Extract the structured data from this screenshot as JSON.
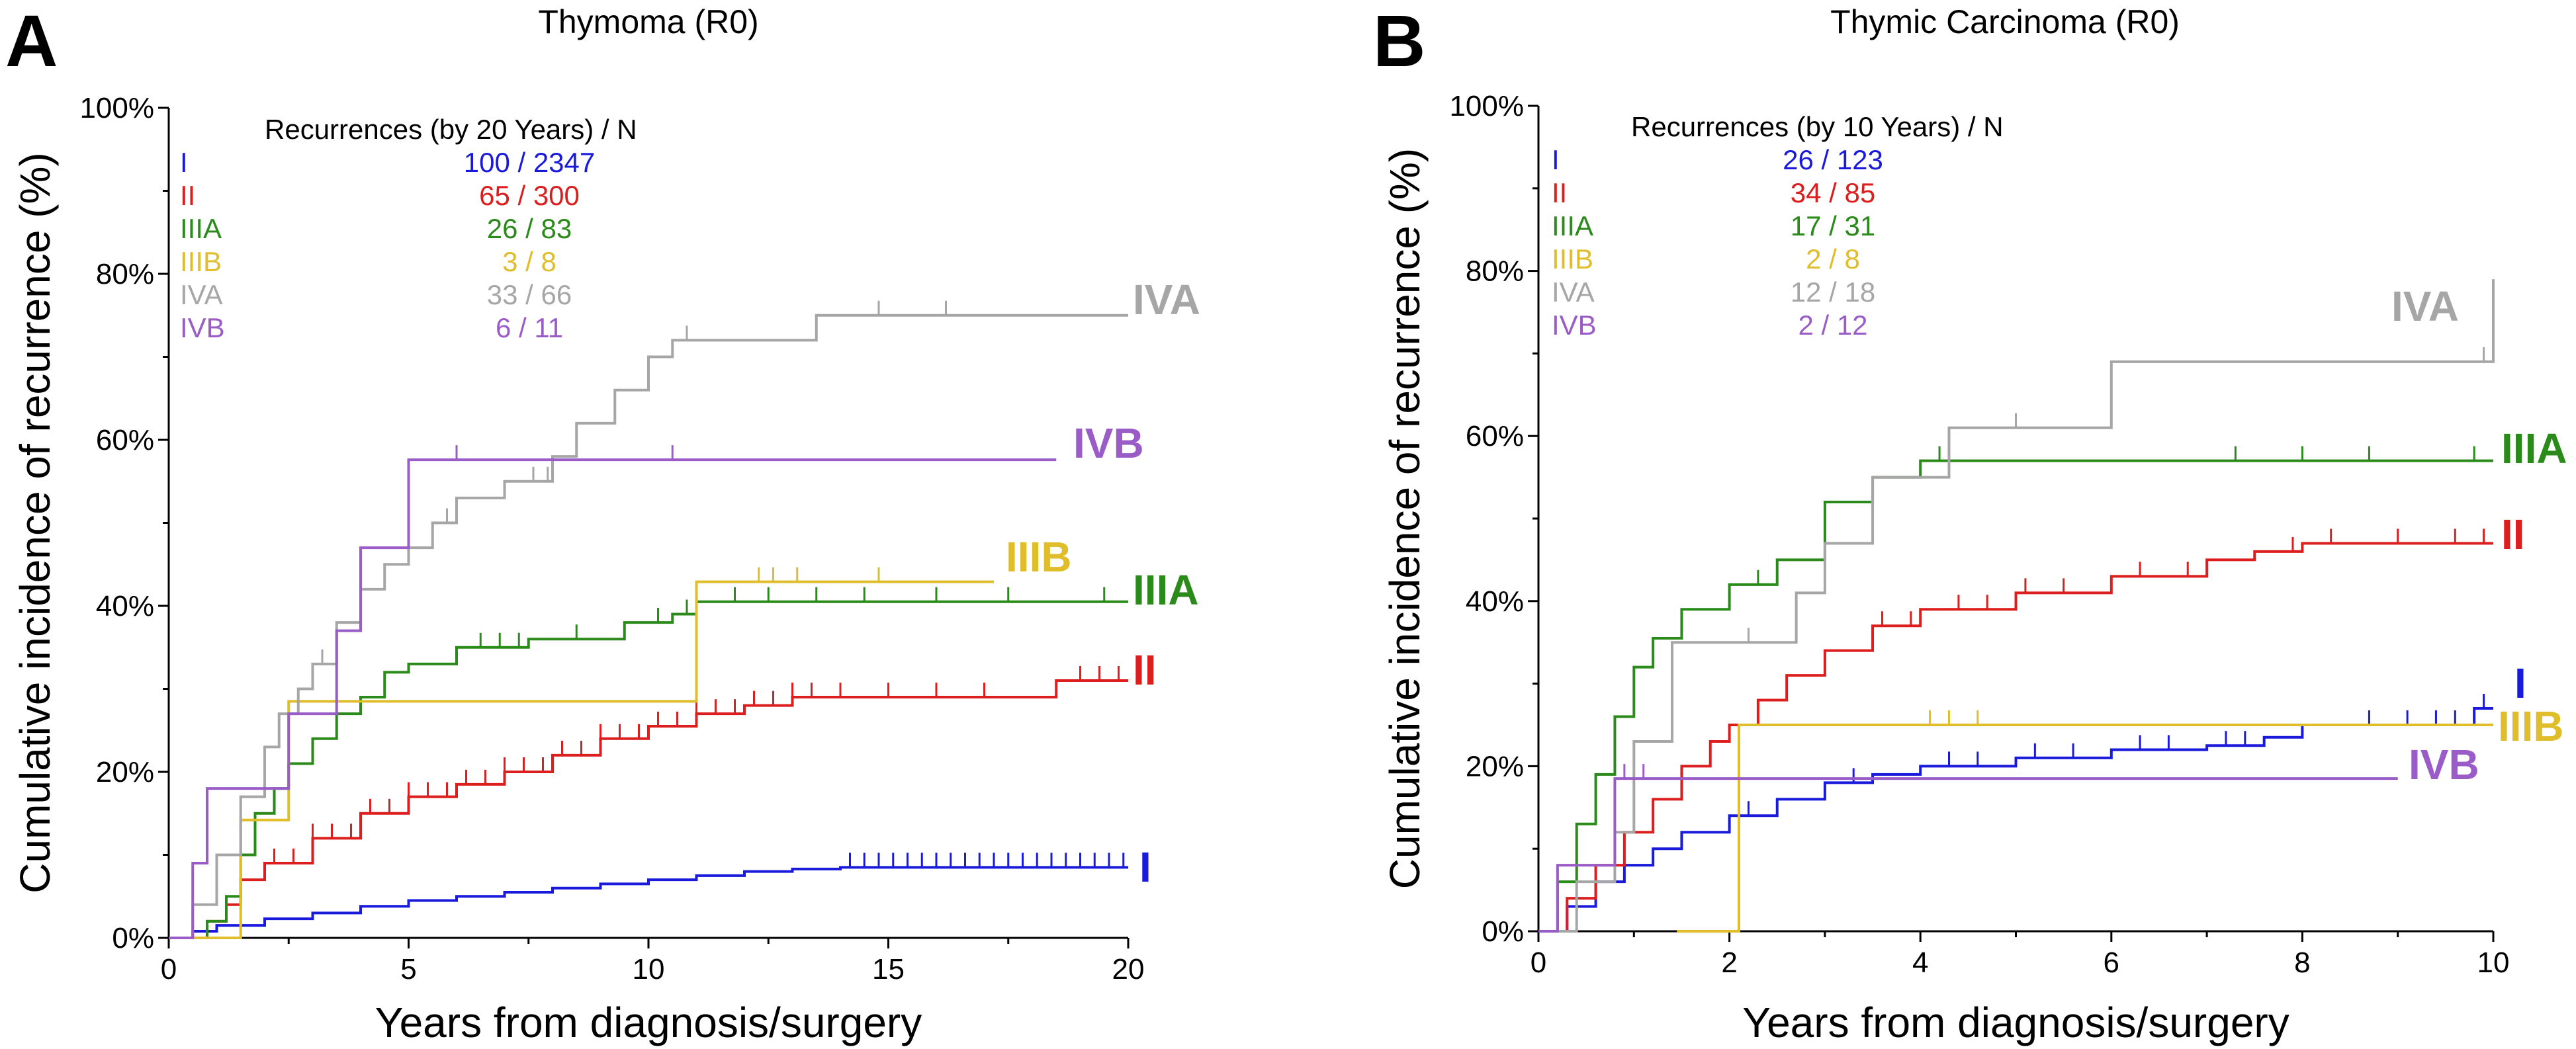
{
  "chart_data": [
    {
      "type": "line",
      "panel_letter": "A",
      "title": "Thymoma (R0)",
      "xlabel": "Years from diagnosis/surgery",
      "ylabel": "Cumulative incidence of recurrence (%)",
      "xlim": [
        0,
        20
      ],
      "ylim": [
        0,
        100
      ],
      "x_ticks": [
        0,
        5,
        10,
        15,
        20
      ],
      "y_ticks": [
        "0%",
        "20%",
        "40%",
        "60%",
        "80%",
        "100%"
      ],
      "y_tick_values": [
        0,
        20,
        40,
        60,
        80,
        100
      ],
      "legend_header": "Recurrences (by 20 Years) / N",
      "legend_position": "top-left",
      "series": [
        {
          "name": "I",
          "color": "#1a1adc",
          "ratio": "100 / 2347",
          "end_label": "I",
          "x": [
            0,
            0.5,
            1,
            2,
            3,
            4,
            5,
            6,
            7,
            8,
            9,
            10,
            11,
            12,
            13,
            14,
            20
          ],
          "y": [
            0,
            0.8,
            1.5,
            2.3,
            3.0,
            3.8,
            4.5,
            5.0,
            5.5,
            6.0,
            6.5,
            7.0,
            7.5,
            8.0,
            8.3,
            8.5,
            8.5
          ],
          "censor_x": [
            14.2,
            14.5,
            14.8,
            15.1,
            15.4,
            15.7,
            16.0,
            16.3,
            16.6,
            16.9,
            17.2,
            17.5,
            17.8,
            18.1,
            18.4,
            18.7,
            19.0,
            19.3,
            19.6,
            19.9
          ]
        },
        {
          "name": "II",
          "color": "#dc1e1e",
          "ratio": "65 / 300",
          "end_label": "II",
          "x": [
            0,
            0.8,
            1.2,
            1.5,
            2,
            3,
            4,
            5,
            6,
            7,
            8,
            9,
            10,
            11,
            12,
            13,
            15,
            18,
            18.5,
            20
          ],
          "y": [
            0,
            2,
            4,
            7,
            9,
            12,
            15,
            17,
            18.5,
            20,
            22,
            24,
            25.5,
            27,
            28,
            29,
            29,
            29,
            31,
            31
          ],
          "censor_x": [
            2.2,
            2.6,
            3.0,
            3.4,
            3.8,
            4.2,
            4.6,
            5.0,
            5.4,
            5.8,
            6.2,
            6.6,
            7.0,
            7.4,
            7.8,
            8.2,
            8.6,
            9.0,
            9.4,
            9.8,
            10.2,
            10.6,
            11.0,
            11.4,
            11.8,
            12.2,
            12.6,
            13.0,
            13.4,
            14.0,
            15.0,
            16.0,
            17.0,
            19.0,
            19.4,
            19.8
          ]
        },
        {
          "name": "IIIA",
          "color": "#2a8a1a",
          "ratio": "26 / 83",
          "end_label": "IIIA",
          "x": [
            0,
            0.8,
            1.2,
            1.5,
            1.8,
            2.2,
            2.5,
            3.0,
            3.5,
            4.0,
            4.5,
            5.0,
            6.0,
            7.5,
            9.5,
            10.5,
            11.0,
            20
          ],
          "y": [
            0,
            2,
            5,
            10,
            15,
            18,
            21,
            24,
            27,
            29,
            32,
            33,
            35,
            36,
            38,
            39,
            40.5,
            40.5
          ],
          "censor_x": [
            6.5,
            6.9,
            7.3,
            8.5,
            10.2,
            10.8,
            11.8,
            12.5,
            13.5,
            14.5,
            16.0,
            17.5,
            19.5
          ]
        },
        {
          "name": "IIIB",
          "color": "#e0bd2a",
          "ratio": "3 / 8",
          "end_label": "IIIB",
          "x": [
            0,
            1.5,
            2.5,
            11.0,
            17.2
          ],
          "y": [
            0,
            14.2,
            28.5,
            42.9,
            42.9
          ],
          "censor_x": [
            12.3,
            12.6,
            13.1,
            14.8
          ]
        },
        {
          "name": "IVA",
          "color": "#a6a6a6",
          "ratio": "33 / 66",
          "end_label": "IVA",
          "x": [
            0,
            0.5,
            1.0,
            1.5,
            2.0,
            2.3,
            2.7,
            3.0,
            3.5,
            4.0,
            4.5,
            5.0,
            5.5,
            6.0,
            7.0,
            8.0,
            8.5,
            9.3,
            10.0,
            10.5,
            13.5,
            20
          ],
          "y": [
            0,
            4,
            10,
            17,
            23,
            27,
            30,
            33,
            38,
            42,
            45,
            47,
            50,
            53,
            55,
            58,
            62,
            66,
            70,
            72,
            75,
            75
          ],
          "censor_x": [
            3.2,
            5.8,
            7.6,
            7.9,
            10.8,
            14.8,
            16.2
          ]
        },
        {
          "name": "IVB",
          "color": "#9a5cc6",
          "ratio": "6 / 11",
          "end_label": "IVB",
          "x": [
            0,
            0.5,
            0.8,
            2.5,
            3.5,
            4.0,
            5.0,
            18.5
          ],
          "y": [
            0,
            9,
            18,
            27,
            37,
            47,
            57.6,
            57.6
          ],
          "censor_x": [
            6.0,
            10.5
          ]
        }
      ]
    },
    {
      "type": "line",
      "panel_letter": "B",
      "title": "Thymic Carcinoma (R0)",
      "xlabel": "Years from diagnosis/surgery",
      "ylabel": "Cumulative incidence of recurrence (%)",
      "xlim": [
        0,
        10
      ],
      "ylim": [
        0,
        100
      ],
      "x_ticks": [
        0,
        2,
        4,
        6,
        8,
        10
      ],
      "y_ticks": [
        "0%",
        "20%",
        "40%",
        "60%",
        "80%",
        "100%"
      ],
      "y_tick_values": [
        0,
        20,
        40,
        60,
        80,
        100
      ],
      "legend_header": "Recurrences (by 10 Years) / N",
      "legend_position": "top-left",
      "series": [
        {
          "name": "I",
          "color": "#1a1adc",
          "ratio": "26 / 123",
          "end_label": "I",
          "x": [
            0,
            0.3,
            0.6,
            0.9,
            1.2,
            1.5,
            2.0,
            2.5,
            3.0,
            3.5,
            4.0,
            5.0,
            6.0,
            7.0,
            7.6,
            8.0,
            9.8,
            10
          ],
          "y": [
            0,
            3,
            6,
            8,
            10,
            12,
            14,
            16,
            18,
            19,
            20,
            21,
            22,
            22.5,
            23.5,
            25,
            27,
            27
          ],
          "censor_x": [
            2.2,
            3.3,
            4.3,
            4.6,
            5.2,
            5.6,
            6.3,
            6.6,
            7.2,
            7.4,
            8.7,
            9.1,
            9.4,
            9.6,
            9.9
          ]
        },
        {
          "name": "II",
          "color": "#dc1e1e",
          "ratio": "34 / 85",
          "end_label": "II",
          "x": [
            0,
            0.3,
            0.6,
            0.9,
            1.2,
            1.5,
            1.8,
            2.0,
            2.3,
            2.6,
            3.0,
            3.5,
            4.0,
            5.0,
            6.0,
            7.0,
            7.5,
            8.0,
            10
          ],
          "y": [
            0,
            4,
            8,
            12,
            16,
            20,
            23,
            25,
            28,
            31,
            34,
            37,
            39,
            41,
            43,
            45,
            46,
            47,
            47
          ],
          "censor_x": [
            3.6,
            3.9,
            4.4,
            4.7,
            5.1,
            5.5,
            6.3,
            6.8,
            7.9,
            8.3,
            9.0,
            9.6,
            9.9
          ]
        },
        {
          "name": "IIIA",
          "color": "#2a8a1a",
          "ratio": "17 / 31",
          "end_label": "IIIA",
          "x": [
            0,
            0.2,
            0.4,
            0.6,
            0.8,
            1.0,
            1.2,
            1.5,
            2.0,
            2.5,
            3.0,
            3.5,
            4.0,
            10
          ],
          "y": [
            0,
            6,
            13,
            19,
            26,
            32,
            35.5,
            39,
            42,
            45,
            52,
            55,
            57,
            57
          ],
          "censor_x": [
            2.3,
            4.2,
            7.3,
            8.0,
            8.7,
            9.8
          ]
        },
        {
          "name": "IIIB",
          "color": "#e0bd2a",
          "ratio": "2 / 8",
          "end_label": "IIIB",
          "x": [
            1.45,
            2.1,
            10
          ],
          "y": [
            0,
            25,
            25
          ],
          "censor_x": [
            4.1,
            4.3,
            4.6
          ]
        },
        {
          "name": "IVA",
          "color": "#a6a6a6",
          "ratio": "12 / 18",
          "end_label": "IVA",
          "x": [
            0,
            0.4,
            0.8,
            1.0,
            1.4,
            2.0,
            2.7,
            3.0,
            3.5,
            4.3,
            6.0,
            9.8,
            10
          ],
          "y": [
            0,
            6,
            12,
            23,
            35,
            35,
            41,
            47,
            55,
            61,
            69,
            69,
            79
          ],
          "censor_x": [
            2.2,
            5.0,
            9.9
          ]
        },
        {
          "name": "IVB",
          "color": "#9a5cc6",
          "ratio": "2 / 12",
          "end_label": "IVB",
          "x": [
            0,
            0.2,
            0.8,
            9.0
          ],
          "y": [
            0,
            8,
            18.5,
            18.5
          ],
          "censor_x": [
            0.9,
            1.1
          ]
        }
      ]
    }
  ]
}
